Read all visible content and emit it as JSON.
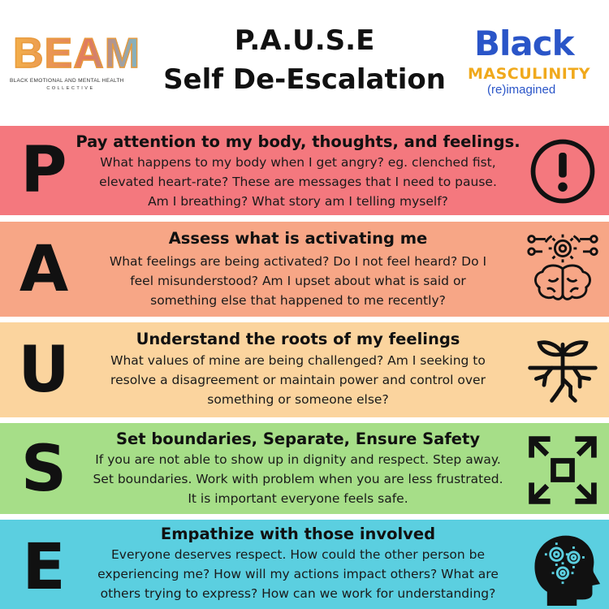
{
  "logos": {
    "beam": {
      "word": "BEAM",
      "subtitle": "BLACK EMOTIONAL AND MENTAL HEALTH",
      "collective": "COLLECTIVE"
    },
    "black_masculinity": {
      "black": "Black",
      "masculinity": "MASCULINITY",
      "reimagined": "(re)imagined"
    }
  },
  "title": {
    "line1": "P.A.U.S.E",
    "line2": "Self De-Escalation"
  },
  "colors": {
    "p_band": "#f4787e",
    "a_band": "#f7a686",
    "u_band": "#fbd49e",
    "s_band": "#a6de88",
    "e_band": "#5bcfe0",
    "beam_orange": "#e89a3c",
    "bm_blue": "#2a55c8",
    "bm_gold": "#f0a91c"
  },
  "steps": [
    {
      "letter": "P",
      "heading": "Pay attention to my body, thoughts, and feelings.",
      "lines": [
        "What happens to my body when I get angry? eg. clenched fist,",
        "elevated heart-rate? These are messages that I need to pause.",
        "Am I breathing? What story am I telling myself?"
      ],
      "icon": "exclamation-circle-icon"
    },
    {
      "letter": "A",
      "heading": "Assess what is activating me",
      "lines": [
        "What feelings are being activated? Do I not feel heard? Do I",
        "feel misunderstood? Am I upset about what is said or",
        "something else that happened to me recently?"
      ],
      "icon": "brain-gears-icon"
    },
    {
      "letter": "U",
      "heading": "Understand the roots of my feelings",
      "lines": [
        "What values of mine are being challenged? Am I seeking to",
        "resolve a disagreement or maintain power and control over",
        "something or someone else?"
      ],
      "icon": "plant-roots-icon"
    },
    {
      "letter": "S",
      "heading": "Set boundaries, Separate, Ensure Safety",
      "lines": [
        "If you are not able to show up in dignity and respect. Step away.",
        "Set boundaries. Work with problem when you are less frustrated.",
        "It is important everyone feels safe."
      ],
      "icon": "expand-arrows-icon"
    },
    {
      "letter": "E",
      "heading": "Empathize with those involved",
      "lines": [
        "Everyone deserves respect. How could the other person be",
        "experiencing me? How will my actions impact others? What are",
        "others trying to express? How can we work for understanding?"
      ],
      "icon": "head-gears-icon"
    }
  ]
}
